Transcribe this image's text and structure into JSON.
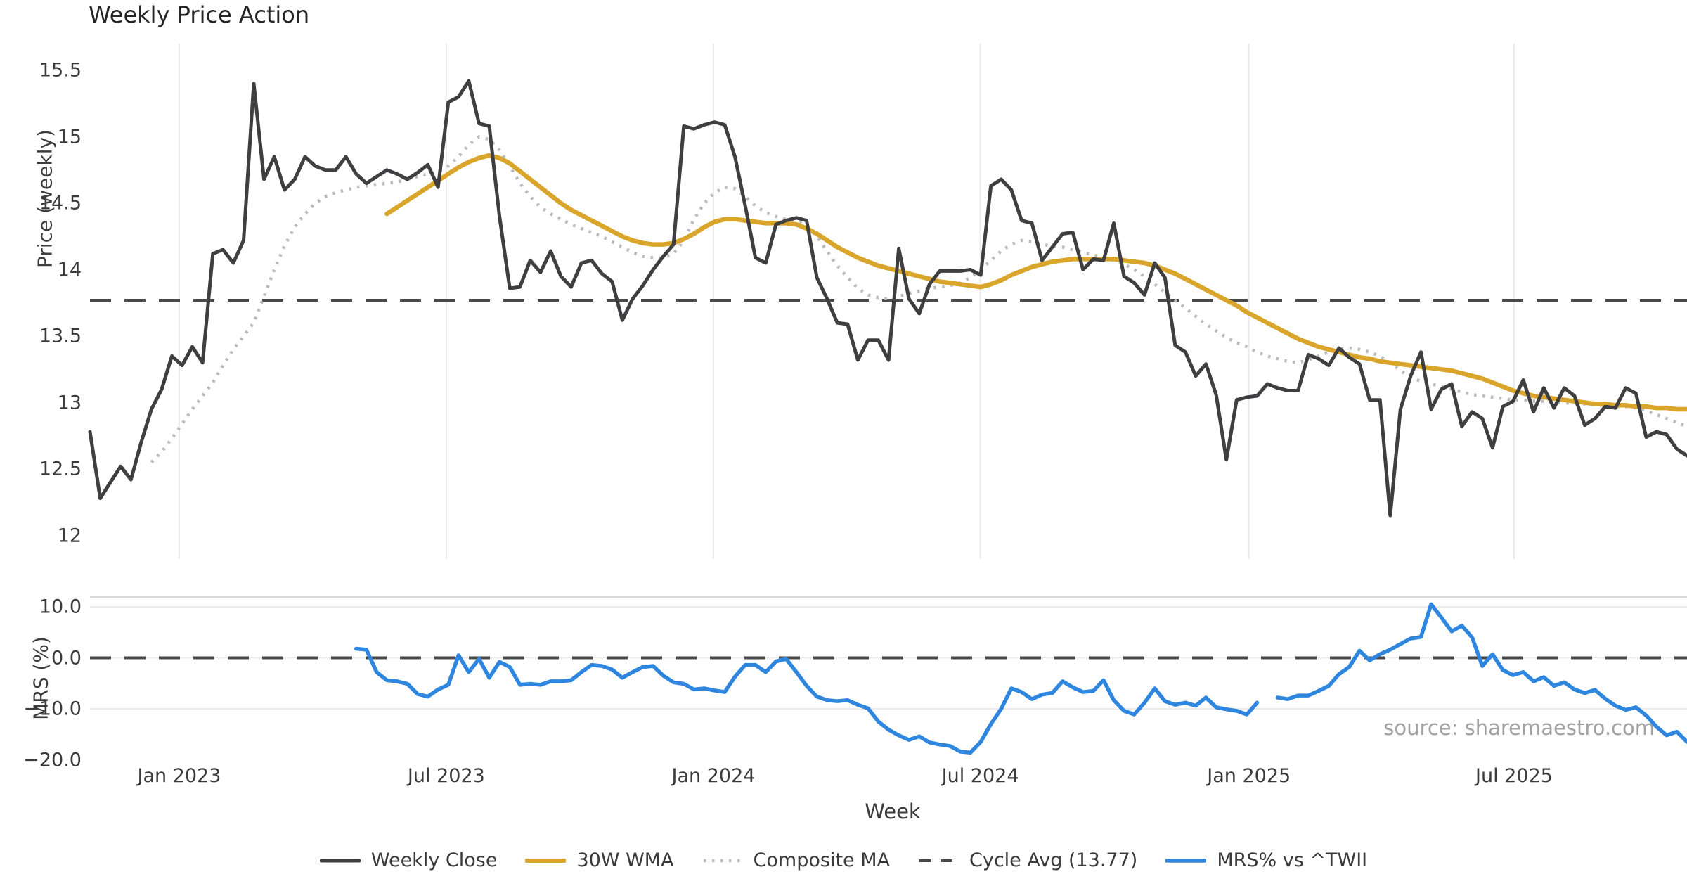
{
  "title": "Weekly Price Action",
  "price_axis": {
    "label": "Price (weekly)"
  },
  "mrs_axis": {
    "label": "MRS (%)"
  },
  "x_axis": {
    "label": "Week"
  },
  "source": "source: sharemaestro.com",
  "legend": [
    {
      "label": "Weekly Close"
    },
    {
      "label": "30W WMA"
    },
    {
      "label": "Composite MA"
    },
    {
      "label": "Cycle Avg (13.77)"
    },
    {
      "label": "MRS% vs ^TWII"
    }
  ],
  "chart_data": [
    {
      "type": "line",
      "panel": "price",
      "title": "Weekly Price Action",
      "ylabel": "Price (weekly)",
      "ylim": [
        11.9,
        15.62
      ],
      "yticks": [
        {
          "v": 15.5,
          "label": "15.5"
        },
        {
          "v": 15.0,
          "label": "15"
        },
        {
          "v": 14.5,
          "label": "14.5"
        },
        {
          "v": 14.0,
          "label": "14"
        },
        {
          "v": 13.5,
          "label": "13.5"
        },
        {
          "v": 13.0,
          "label": "13"
        },
        {
          "v": 12.5,
          "label": "12.5"
        },
        {
          "v": 12.0,
          "label": "12"
        }
      ],
      "x_ticks": [
        {
          "week": 8.72,
          "label": "Jan 2023"
        },
        {
          "week": 34.8,
          "label": "Jul 2023"
        },
        {
          "week": 60.9,
          "label": "Jan 2024"
        },
        {
          "week": 86.96,
          "label": "Jul 2024"
        },
        {
          "week": 113.2,
          "label": "Jan 2025"
        },
        {
          "week": 139.1,
          "label": "Jul 2025"
        }
      ],
      "cycle_avg": 13.77,
      "grid": "vertical",
      "series": [
        {
          "name": "Weekly Close",
          "color": "#3f3f41",
          "style": "solid",
          "start_week": 0,
          "values": [
            12.78,
            12.28,
            12.4,
            12.52,
            12.42,
            12.7,
            12.95,
            13.1,
            13.35,
            13.28,
            13.42,
            13.3,
            14.12,
            14.15,
            14.05,
            14.22,
            15.4,
            14.68,
            14.85,
            14.6,
            14.68,
            14.85,
            14.78,
            14.75,
            14.75,
            14.85,
            14.72,
            14.65,
            14.7,
            14.75,
            14.72,
            14.68,
            14.73,
            14.79,
            14.62,
            15.26,
            15.3,
            15.42,
            15.1,
            15.08,
            14.4,
            13.86,
            13.87,
            14.07,
            13.98,
            14.14,
            13.95,
            13.87,
            14.05,
            14.07,
            13.97,
            13.91,
            13.62,
            13.78,
            13.88,
            14.0,
            14.1,
            14.19,
            15.08,
            15.06,
            15.09,
            15.11,
            15.09,
            14.85,
            14.48,
            14.09,
            14.05,
            14.34,
            14.37,
            14.39,
            14.37,
            13.94,
            13.78,
            13.6,
            13.59,
            13.32,
            13.47,
            13.47,
            13.32,
            14.16,
            13.78,
            13.67,
            13.89,
            13.99,
            13.99,
            13.99,
            14.0,
            13.96,
            14.63,
            14.68,
            14.6,
            14.37,
            14.35,
            14.07,
            14.17,
            14.27,
            14.28,
            14.0,
            14.08,
            14.07,
            14.35,
            13.95,
            13.9,
            13.81,
            14.05,
            13.94,
            13.43,
            13.38,
            13.2,
            13.29,
            13.06,
            12.57,
            13.02,
            13.04,
            13.05,
            13.14,
            13.11,
            13.09,
            13.09,
            13.36,
            13.33,
            13.28,
            13.41,
            13.34,
            13.29,
            13.02,
            13.02,
            12.15,
            12.95,
            13.2,
            13.38,
            12.95,
            13.1,
            13.14,
            12.82,
            12.93,
            12.88,
            12.66,
            12.97,
            13.01,
            13.17,
            12.93,
            13.11,
            12.96,
            13.11,
            13.05,
            12.83,
            12.88,
            12.97,
            12.96,
            13.11,
            13.07,
            12.74,
            12.78,
            12.76,
            12.65,
            12.6
          ]
        },
        {
          "name": "30W WMA",
          "color": "#d9a62b",
          "style": "solid",
          "start_week": 29,
          "values": [
            14.42,
            14.47,
            14.52,
            14.57,
            14.62,
            14.67,
            14.72,
            14.77,
            14.81,
            14.84,
            14.86,
            14.84,
            14.8,
            14.74,
            14.68,
            14.62,
            14.56,
            14.5,
            14.45,
            14.41,
            14.37,
            14.33,
            14.29,
            14.25,
            14.22,
            14.2,
            14.19,
            14.19,
            14.2,
            14.23,
            14.27,
            14.32,
            14.36,
            14.38,
            14.38,
            14.37,
            14.36,
            14.35,
            14.35,
            14.35,
            14.34,
            14.31,
            14.27,
            14.22,
            14.17,
            14.13,
            14.09,
            14.06,
            14.03,
            14.01,
            13.99,
            13.97,
            13.95,
            13.93,
            13.91,
            13.9,
            13.89,
            13.88,
            13.87,
            13.89,
            13.92,
            13.96,
            13.99,
            14.02,
            14.04,
            14.06,
            14.07,
            14.08,
            14.08,
            14.08,
            14.08,
            14.08,
            14.07,
            14.06,
            14.05,
            14.03,
            14.0,
            13.97,
            13.93,
            13.89,
            13.85,
            13.81,
            13.77,
            13.73,
            13.68,
            13.64,
            13.6,
            13.56,
            13.52,
            13.48,
            13.45,
            13.42,
            13.4,
            13.38,
            13.36,
            13.34,
            13.33,
            13.31,
            13.3,
            13.29,
            13.28,
            13.27,
            13.26,
            13.25,
            13.24,
            13.22,
            13.2,
            13.18,
            13.15,
            13.12,
            13.09,
            13.07,
            13.05,
            13.04,
            13.03,
            13.02,
            13.01,
            13.0,
            12.99,
            12.99,
            12.98,
            12.98,
            12.97,
            12.97,
            12.96,
            12.96,
            12.95,
            12.95
          ]
        },
        {
          "name": "Composite MA",
          "color": "#bcbcbc",
          "style": "dotted",
          "start_week": 6,
          "values": [
            12.55,
            12.63,
            12.73,
            12.84,
            12.95,
            13.05,
            13.15,
            13.28,
            13.4,
            13.5,
            13.6,
            13.8,
            14.0,
            14.18,
            14.32,
            14.42,
            14.5,
            14.55,
            14.58,
            14.6,
            14.62,
            14.63,
            14.64,
            14.65,
            14.66,
            14.68,
            14.7,
            14.72,
            14.74,
            14.78,
            14.85,
            14.94,
            15.0,
            14.98,
            14.9,
            14.78,
            14.65,
            14.55,
            14.47,
            14.42,
            14.38,
            14.34,
            14.31,
            14.28,
            14.25,
            14.21,
            14.17,
            14.13,
            14.1,
            14.09,
            14.09,
            14.12,
            14.22,
            14.38,
            14.5,
            14.58,
            14.62,
            14.61,
            14.55,
            14.48,
            14.43,
            14.4,
            14.38,
            14.37,
            14.33,
            14.25,
            14.14,
            14.03,
            13.94,
            13.86,
            13.81,
            13.79,
            13.78,
            13.8,
            13.82,
            13.84,
            13.86,
            13.87,
            13.88,
            13.9,
            13.94,
            14.0,
            14.07,
            14.14,
            14.19,
            14.22,
            14.21,
            14.19,
            14.18,
            14.17,
            14.15,
            14.13,
            14.11,
            14.09,
            14.07,
            14.04,
            14.0,
            13.95,
            13.89,
            13.83,
            13.77,
            13.71,
            13.65,
            13.59,
            13.54,
            13.49,
            13.45,
            13.42,
            13.38,
            13.35,
            13.33,
            13.31,
            13.3,
            13.32,
            13.35,
            13.38,
            13.4,
            13.41,
            13.4,
            13.38,
            13.35,
            13.3,
            13.24,
            13.19,
            13.16,
            13.14,
            13.12,
            13.1,
            13.08,
            13.06,
            13.05,
            13.04,
            13.03,
            13.02,
            13.02,
            13.01,
            13.01,
            13.0,
            13.0,
            12.99,
            12.99,
            12.98,
            12.98,
            12.97,
            12.97,
            12.96,
            12.94,
            12.91,
            12.88,
            12.85,
            12.82
          ]
        }
      ]
    },
    {
      "type": "line",
      "panel": "mrs",
      "ylabel": "MRS (%)",
      "xlabel": "Week",
      "ylim": [
        -22,
        12
      ],
      "yticks": [
        {
          "v": 10,
          "label": "10.0"
        },
        {
          "v": 0,
          "label": "0.0"
        },
        {
          "v": -10,
          "label": "−10.0"
        },
        {
          "v": -20,
          "label": "−20.0"
        }
      ],
      "zero_line": 0,
      "grid": "horizontal",
      "series": [
        {
          "name": "MRS% vs ^TWII",
          "color": "#2e86de",
          "style": "solid",
          "start_week": 26,
          "values": [
            1.8,
            1.6,
            -2.8,
            -4.4,
            -4.6,
            -5.1,
            -7.1,
            -7.6,
            -6.2,
            -5.3,
            0.5,
            -2.8,
            -0.2,
            -3.9,
            -0.8,
            -1.8,
            -5.3,
            -5.1,
            -5.3,
            -4.6,
            -4.6,
            -4.4,
            -2.8,
            -1.4,
            -1.6,
            -2.3,
            -3.9,
            -2.8,
            -1.8,
            -1.6,
            -3.5,
            -4.8,
            -5.1,
            -6.2,
            -6.0,
            -6.4,
            -6.7,
            -3.7,
            -1.4,
            -1.4,
            -2.8,
            -0.7,
            -0.2,
            -2.8,
            -5.5,
            -7.6,
            -8.3,
            -8.5,
            -8.3,
            -9.2,
            -9.9,
            -12.5,
            -14.1,
            -15.2,
            -16.1,
            -15.4,
            -16.6,
            -17.0,
            -17.3,
            -18.4,
            -18.6,
            -16.5,
            -13.0,
            -10.0,
            -6.0,
            -6.7,
            -8.1,
            -7.2,
            -6.9,
            -4.6,
            -5.8,
            -6.7,
            -6.5,
            -4.4,
            -8.3,
            -10.4,
            -11.1,
            -8.8,
            -6.0,
            -8.5,
            -9.2,
            -8.8,
            -9.4,
            -7.8,
            -9.7,
            -10.1,
            -10.4,
            -11.1,
            -8.8,
            null,
            -7.8,
            -8.1,
            -7.4,
            -7.4,
            -6.5,
            -5.5,
            -3.2,
            -1.8,
            1.4,
            -0.5,
            0.7,
            1.6,
            2.7,
            3.8,
            4.1,
            10.5,
            7.9,
            5.2,
            6.3,
            4.0,
            -1.6,
            0.7,
            -2.4,
            -3.4,
            -2.8,
            -4.6,
            -3.8,
            -5.5,
            -4.8,
            -6.2,
            -6.9,
            -6.3,
            -8.0,
            -9.4,
            -10.2,
            -9.7,
            -11.3,
            -13.5,
            -15.2,
            -14.5,
            -16.5
          ]
        }
      ],
      "legend_position": "bottom-center",
      "cycle_avg_line_color": "#4a4a4a",
      "grid_color": "#ececee"
    }
  ]
}
